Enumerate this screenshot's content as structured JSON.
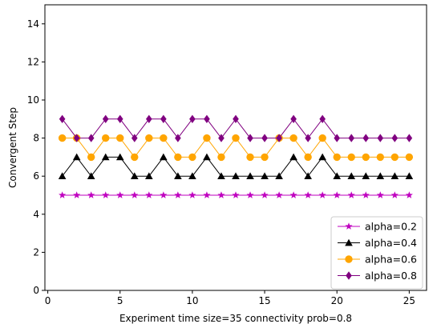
{
  "chart_data": {
    "type": "line",
    "xlabel": "Experiment time size=35 connectivity prob=0.8",
    "ylabel": "Convergent Step",
    "xlim": [
      -0.2,
      26.2
    ],
    "ylim": [
      0,
      15
    ],
    "xticks": [
      0,
      5,
      10,
      15,
      20,
      25
    ],
    "yticks": [
      0,
      2,
      4,
      6,
      8,
      10,
      12,
      14
    ],
    "grid": false,
    "legend_position": "lower-right",
    "x": [
      1,
      2,
      3,
      4,
      5,
      6,
      7,
      8,
      9,
      10,
      11,
      12,
      13,
      14,
      15,
      16,
      17,
      18,
      19,
      20,
      21,
      22,
      23,
      24,
      25
    ],
    "series": [
      {
        "name": "alpha=0.2",
        "color": "#bf00bf",
        "marker": "star",
        "values": [
          5,
          5,
          5,
          5,
          5,
          5,
          5,
          5,
          5,
          5,
          5,
          5,
          5,
          5,
          5,
          5,
          5,
          5,
          5,
          5,
          5,
          5,
          5,
          5,
          5
        ]
      },
      {
        "name": "alpha=0.4",
        "color": "#000000",
        "marker": "triangle",
        "values": [
          6,
          7,
          6,
          7,
          7,
          6,
          6,
          7,
          6,
          6,
          7,
          6,
          6,
          6,
          6,
          6,
          7,
          6,
          7,
          6,
          6,
          6,
          6,
          6,
          6
        ]
      },
      {
        "name": "alpha=0.6",
        "color": "#ffa500",
        "marker": "circle",
        "values": [
          8,
          8,
          7,
          8,
          8,
          7,
          8,
          8,
          7,
          7,
          8,
          7,
          8,
          7,
          7,
          8,
          8,
          7,
          8,
          7,
          7,
          7,
          7,
          7,
          7
        ]
      },
      {
        "name": "alpha=0.8",
        "color": "#800080",
        "marker": "diamond",
        "values": [
          9,
          8,
          8,
          9,
          9,
          8,
          9,
          9,
          8,
          9,
          9,
          8,
          9,
          8,
          8,
          8,
          9,
          8,
          9,
          8,
          8,
          8,
          8,
          8,
          8
        ]
      }
    ]
  }
}
